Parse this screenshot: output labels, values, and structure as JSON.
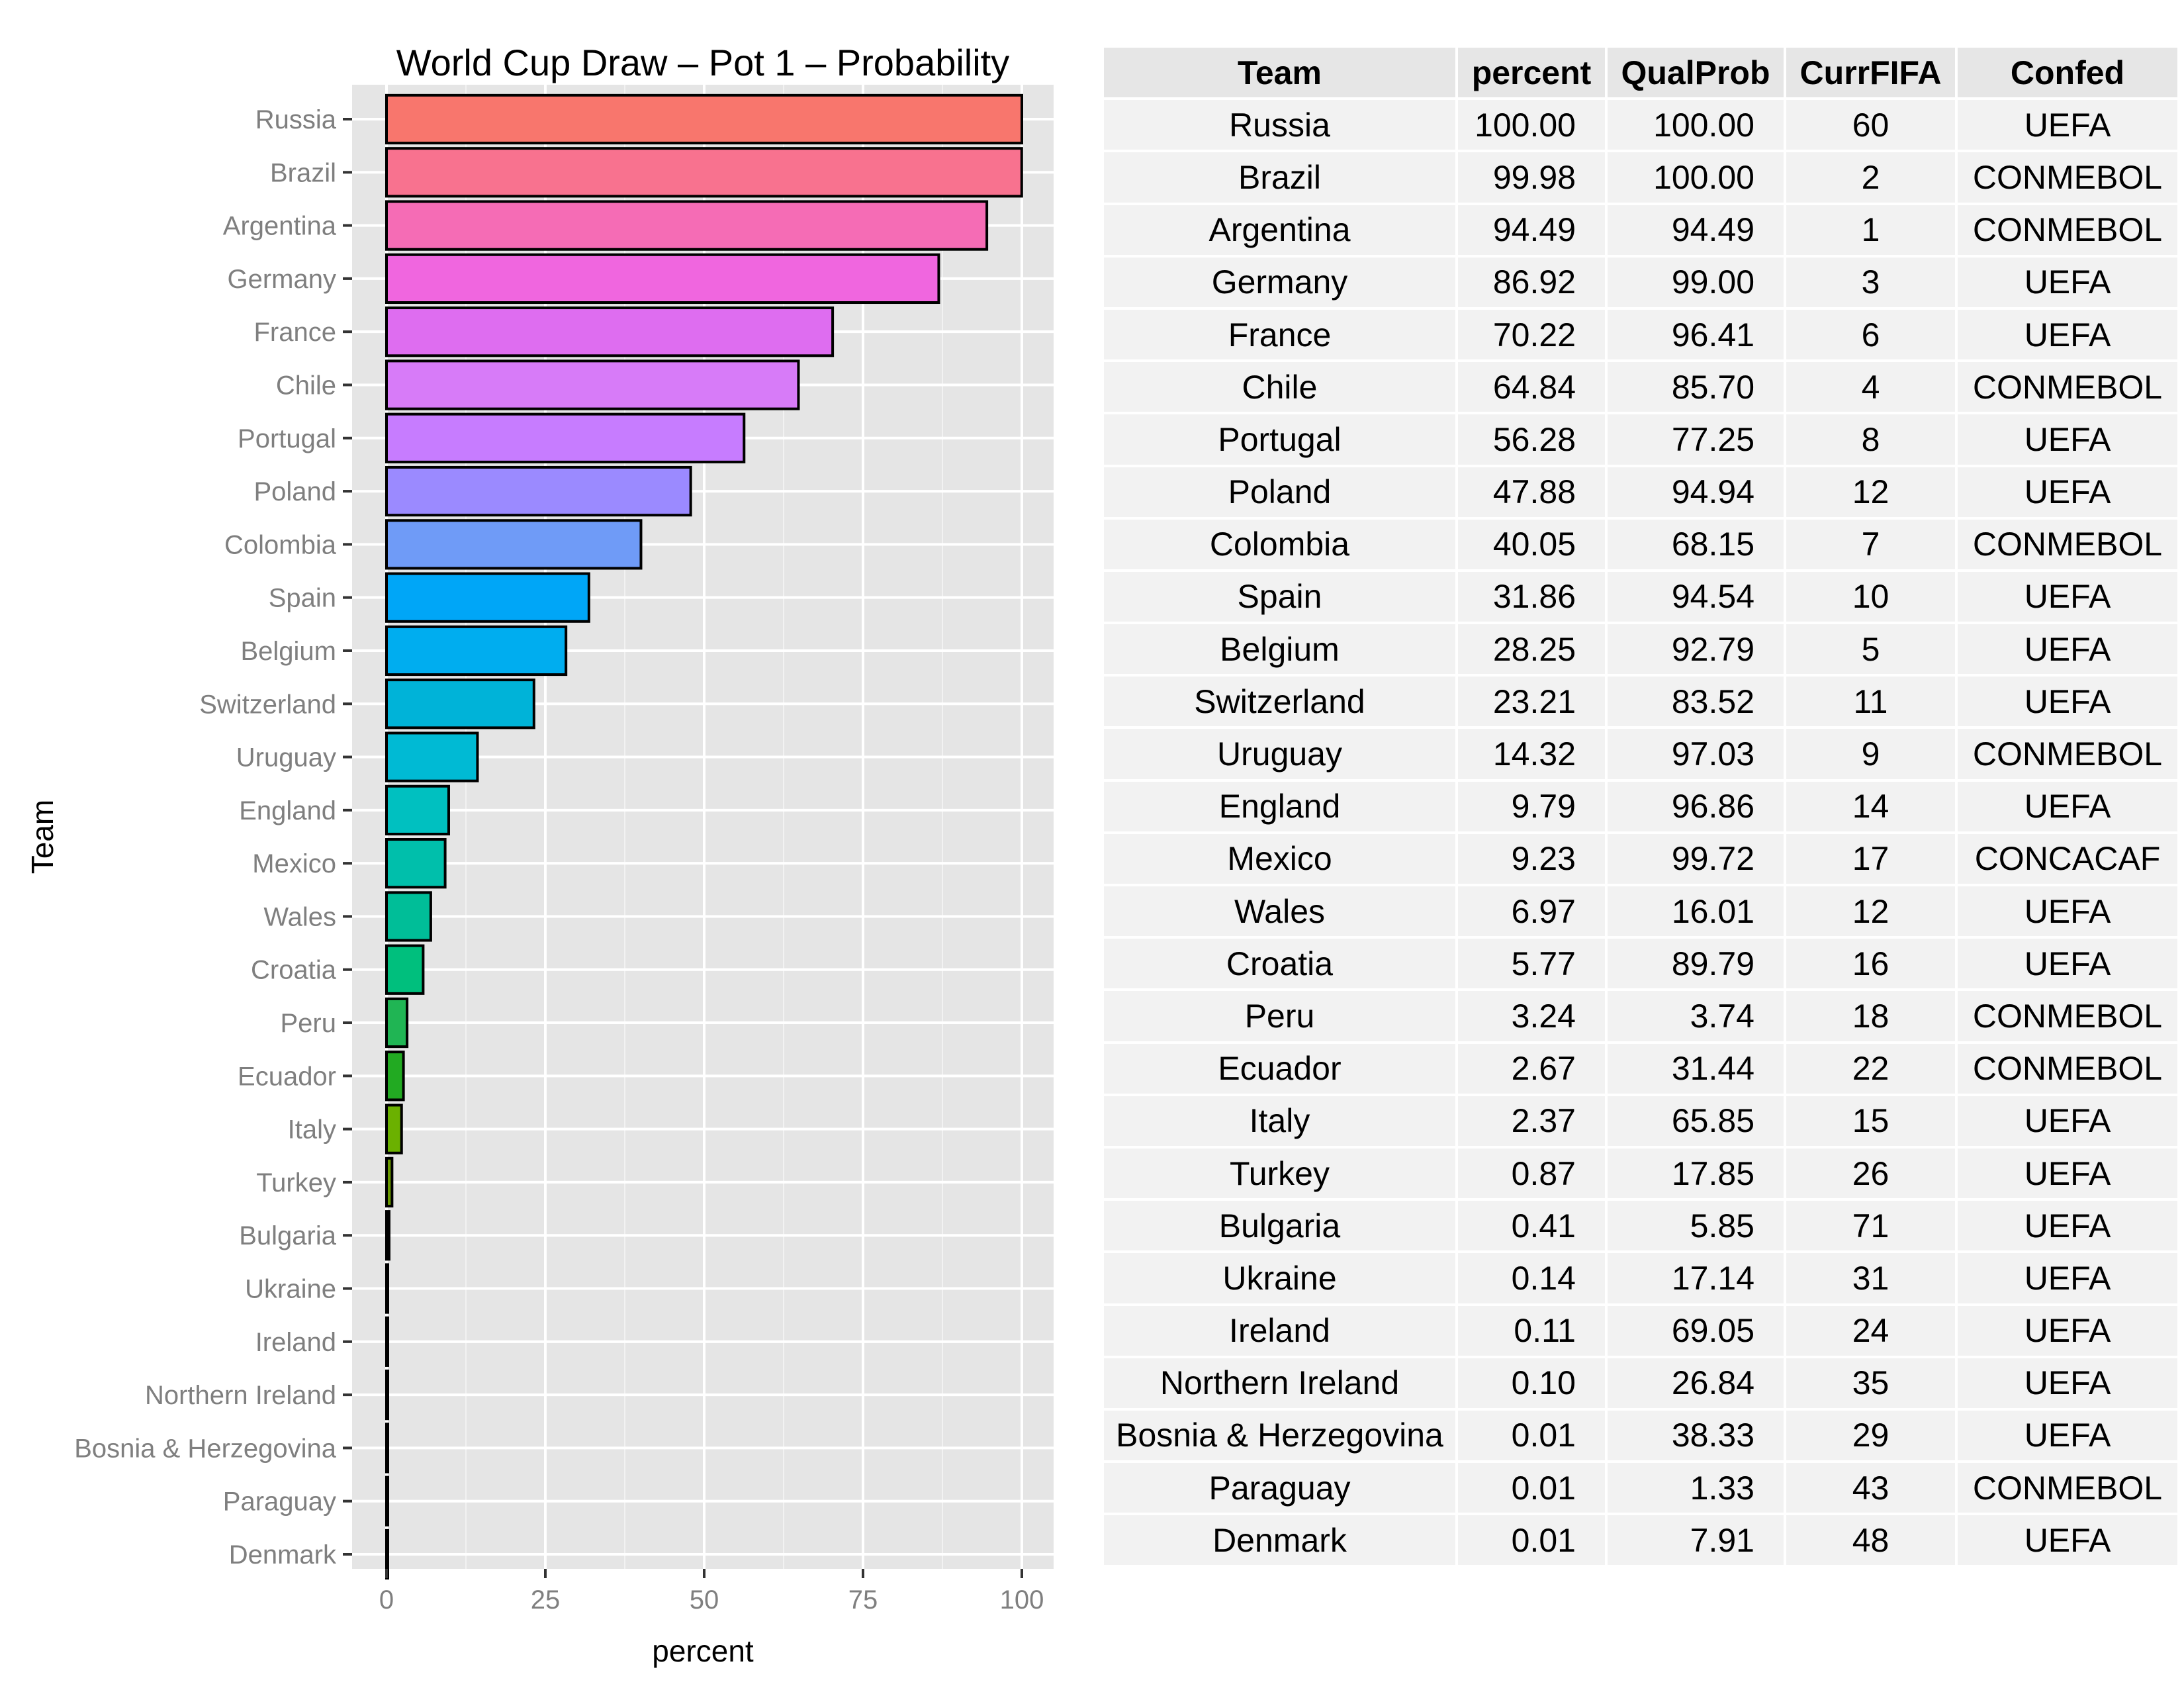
{
  "chart_data": {
    "type": "bar",
    "orientation": "horizontal",
    "title": "World Cup Draw – Pot 1 – Probability",
    "xlabel": "percent",
    "ylabel": "Team",
    "xlim": [
      0,
      100
    ],
    "xticks": [
      0,
      25,
      50,
      75,
      100
    ],
    "grid": true,
    "legend": "none",
    "categories": [
      "Russia",
      "Brazil",
      "Argentina",
      "Germany",
      "France",
      "Chile",
      "Portugal",
      "Poland",
      "Colombia",
      "Spain",
      "Belgium",
      "Switzerland",
      "Uruguay",
      "England",
      "Mexico",
      "Wales",
      "Croatia",
      "Peru",
      "Ecuador",
      "Italy",
      "Turkey",
      "Bulgaria",
      "Ukraine",
      "Ireland",
      "Northern Ireland",
      "Bosnia & Herzegovina",
      "Paraguay",
      "Denmark"
    ],
    "values": [
      100.0,
      99.98,
      94.49,
      86.92,
      70.22,
      64.84,
      56.28,
      47.88,
      40.05,
      31.86,
      28.25,
      23.21,
      14.32,
      9.79,
      9.23,
      6.97,
      5.77,
      3.24,
      2.67,
      2.37,
      0.87,
      0.41,
      0.14,
      0.11,
      0.1,
      0.01,
      0.01,
      0.01
    ],
    "bar_colors": [
      "#F8766D",
      "#F8728F",
      "#F56CB5",
      "#F066DF",
      "#DE6DF0",
      "#D77BF8",
      "#C77CFF",
      "#9B8AFF",
      "#6F9BF7",
      "#00A6F7",
      "#00ADEF",
      "#00B3D8",
      "#00BAD4",
      "#00C0C0",
      "#00BFAB",
      "#00BE98",
      "#00BF7D",
      "#20B554",
      "#22AA22",
      "#6BB100",
      "#6A9A00",
      "#5C9C00",
      "#4B9300",
      "#3F8800",
      "#458A00",
      "#3B7F00",
      "#336F00",
      "#2D6400"
    ]
  },
  "table": {
    "headers": [
      "Team",
      "percent",
      "QualProb",
      "CurrFIFA",
      "Confed"
    ],
    "rows": [
      [
        "Russia",
        "100.00",
        "100.00",
        "60",
        "UEFA"
      ],
      [
        "Brazil",
        "99.98",
        "100.00",
        "2",
        "CONMEBOL"
      ],
      [
        "Argentina",
        "94.49",
        "94.49",
        "1",
        "CONMEBOL"
      ],
      [
        "Germany",
        "86.92",
        "99.00",
        "3",
        "UEFA"
      ],
      [
        "France",
        "70.22",
        "96.41",
        "6",
        "UEFA"
      ],
      [
        "Chile",
        "64.84",
        "85.70",
        "4",
        "CONMEBOL"
      ],
      [
        "Portugal",
        "56.28",
        "77.25",
        "8",
        "UEFA"
      ],
      [
        "Poland",
        "47.88",
        "94.94",
        "12",
        "UEFA"
      ],
      [
        "Colombia",
        "40.05",
        "68.15",
        "7",
        "CONMEBOL"
      ],
      [
        "Spain",
        "31.86",
        "94.54",
        "10",
        "UEFA"
      ],
      [
        "Belgium",
        "28.25",
        "92.79",
        "5",
        "UEFA"
      ],
      [
        "Switzerland",
        "23.21",
        "83.52",
        "11",
        "UEFA"
      ],
      [
        "Uruguay",
        "14.32",
        "97.03",
        "9",
        "CONMEBOL"
      ],
      [
        "England",
        "9.79",
        "96.86",
        "14",
        "UEFA"
      ],
      [
        "Mexico",
        "9.23",
        "99.72",
        "17",
        "CONCACAF"
      ],
      [
        "Wales",
        "6.97",
        "16.01",
        "12",
        "UEFA"
      ],
      [
        "Croatia",
        "5.77",
        "89.79",
        "16",
        "UEFA"
      ],
      [
        "Peru",
        "3.24",
        "3.74",
        "18",
        "CONMEBOL"
      ],
      [
        "Ecuador",
        "2.67",
        "31.44",
        "22",
        "CONMEBOL"
      ],
      [
        "Italy",
        "2.37",
        "65.85",
        "15",
        "UEFA"
      ],
      [
        "Turkey",
        "0.87",
        "17.85",
        "26",
        "UEFA"
      ],
      [
        "Bulgaria",
        "0.41",
        "5.85",
        "71",
        "UEFA"
      ],
      [
        "Ukraine",
        "0.14",
        "17.14",
        "31",
        "UEFA"
      ],
      [
        "Ireland",
        "0.11",
        "69.05",
        "24",
        "UEFA"
      ],
      [
        "Northern Ireland",
        "0.10",
        "26.84",
        "35",
        "UEFA"
      ],
      [
        "Bosnia & Herzegovina",
        "0.01",
        "38.33",
        "29",
        "UEFA"
      ],
      [
        "Paraguay",
        "0.01",
        "1.33",
        "43",
        "CONMEBOL"
      ],
      [
        "Denmark",
        "0.01",
        "7.91",
        "48",
        "UEFA"
      ]
    ]
  }
}
